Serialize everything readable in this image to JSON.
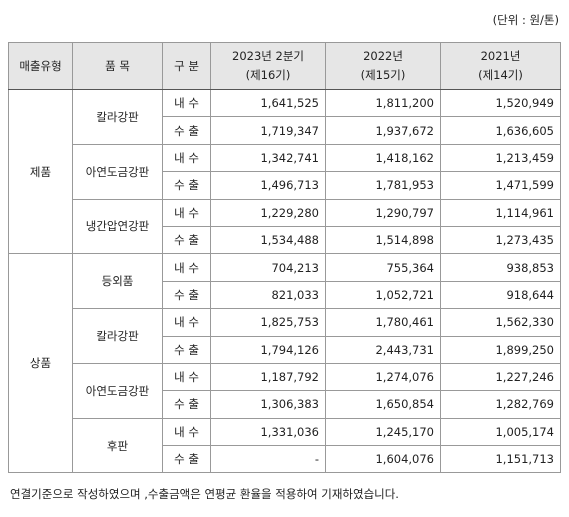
{
  "unit_note": "(단위 : 원/톤)",
  "table": {
    "header": {
      "type": "매출유형",
      "product": "품 목",
      "kind": "구 분",
      "periods": [
        {
          "name": "2023년 2분기",
          "term": "(제16기)"
        },
        {
          "name": "2022년",
          "term": "(제15기)"
        },
        {
          "name": "2021년",
          "term": "(제14기)"
        }
      ]
    },
    "groups": [
      {
        "type": "제품",
        "products": [
          {
            "name": "칼라강판",
            "rows": [
              {
                "kind": "내 수",
                "values": [
                  "1,641,525",
                  "1,811,200",
                  "1,520,949"
                ]
              },
              {
                "kind": "수 출",
                "values": [
                  "1,719,347",
                  "1,937,672",
                  "1,636,605"
                ]
              }
            ]
          },
          {
            "name": "아연도금강판",
            "rows": [
              {
                "kind": "내 수",
                "values": [
                  "1,342,741",
                  "1,418,162",
                  "1,213,459"
                ]
              },
              {
                "kind": "수 출",
                "values": [
                  "1,496,713",
                  "1,781,953",
                  "1,471,599"
                ]
              }
            ]
          },
          {
            "name": "냉간압연강판",
            "rows": [
              {
                "kind": "내 수",
                "values": [
                  "1,229,280",
                  "1,290,797",
                  "1,114,961"
                ]
              },
              {
                "kind": "수 출",
                "values": [
                  "1,534,488",
                  "1,514,898",
                  "1,273,435"
                ]
              }
            ]
          }
        ]
      },
      {
        "type": "상품",
        "products": [
          {
            "name": "등외품",
            "rows": [
              {
                "kind": "내 수",
                "values": [
                  "704,213",
                  "755,364",
                  "938,853"
                ]
              },
              {
                "kind": "수 출",
                "values": [
                  "821,033",
                  "1,052,721",
                  "918,644"
                ]
              }
            ]
          },
          {
            "name": "칼라강판",
            "rows": [
              {
                "kind": "내 수",
                "values": [
                  "1,825,753",
                  "1,780,461",
                  "1,562,330"
                ]
              },
              {
                "kind": "수 출",
                "values": [
                  "1,794,126",
                  "2,443,731",
                  "1,899,250"
                ]
              }
            ]
          },
          {
            "name": "아연도금강판",
            "rows": [
              {
                "kind": "내 수",
                "values": [
                  "1,187,792",
                  "1,274,076",
                  "1,227,246"
                ]
              },
              {
                "kind": "수 출",
                "values": [
                  "1,306,383",
                  "1,650,854",
                  "1,282,769"
                ]
              }
            ]
          },
          {
            "name": "후판",
            "rows": [
              {
                "kind": "내 수",
                "values": [
                  "1,331,036",
                  "1,245,170",
                  "1,005,174"
                ]
              },
              {
                "kind": "수 출",
                "values": [
                  "-",
                  "1,604,076",
                  "1,151,713"
                ]
              }
            ]
          }
        ]
      }
    ]
  },
  "footnote": "연결기준으로 작성하였으며 ,수출금액은 연평균 환율을 적용하여 기재하였습니다."
}
